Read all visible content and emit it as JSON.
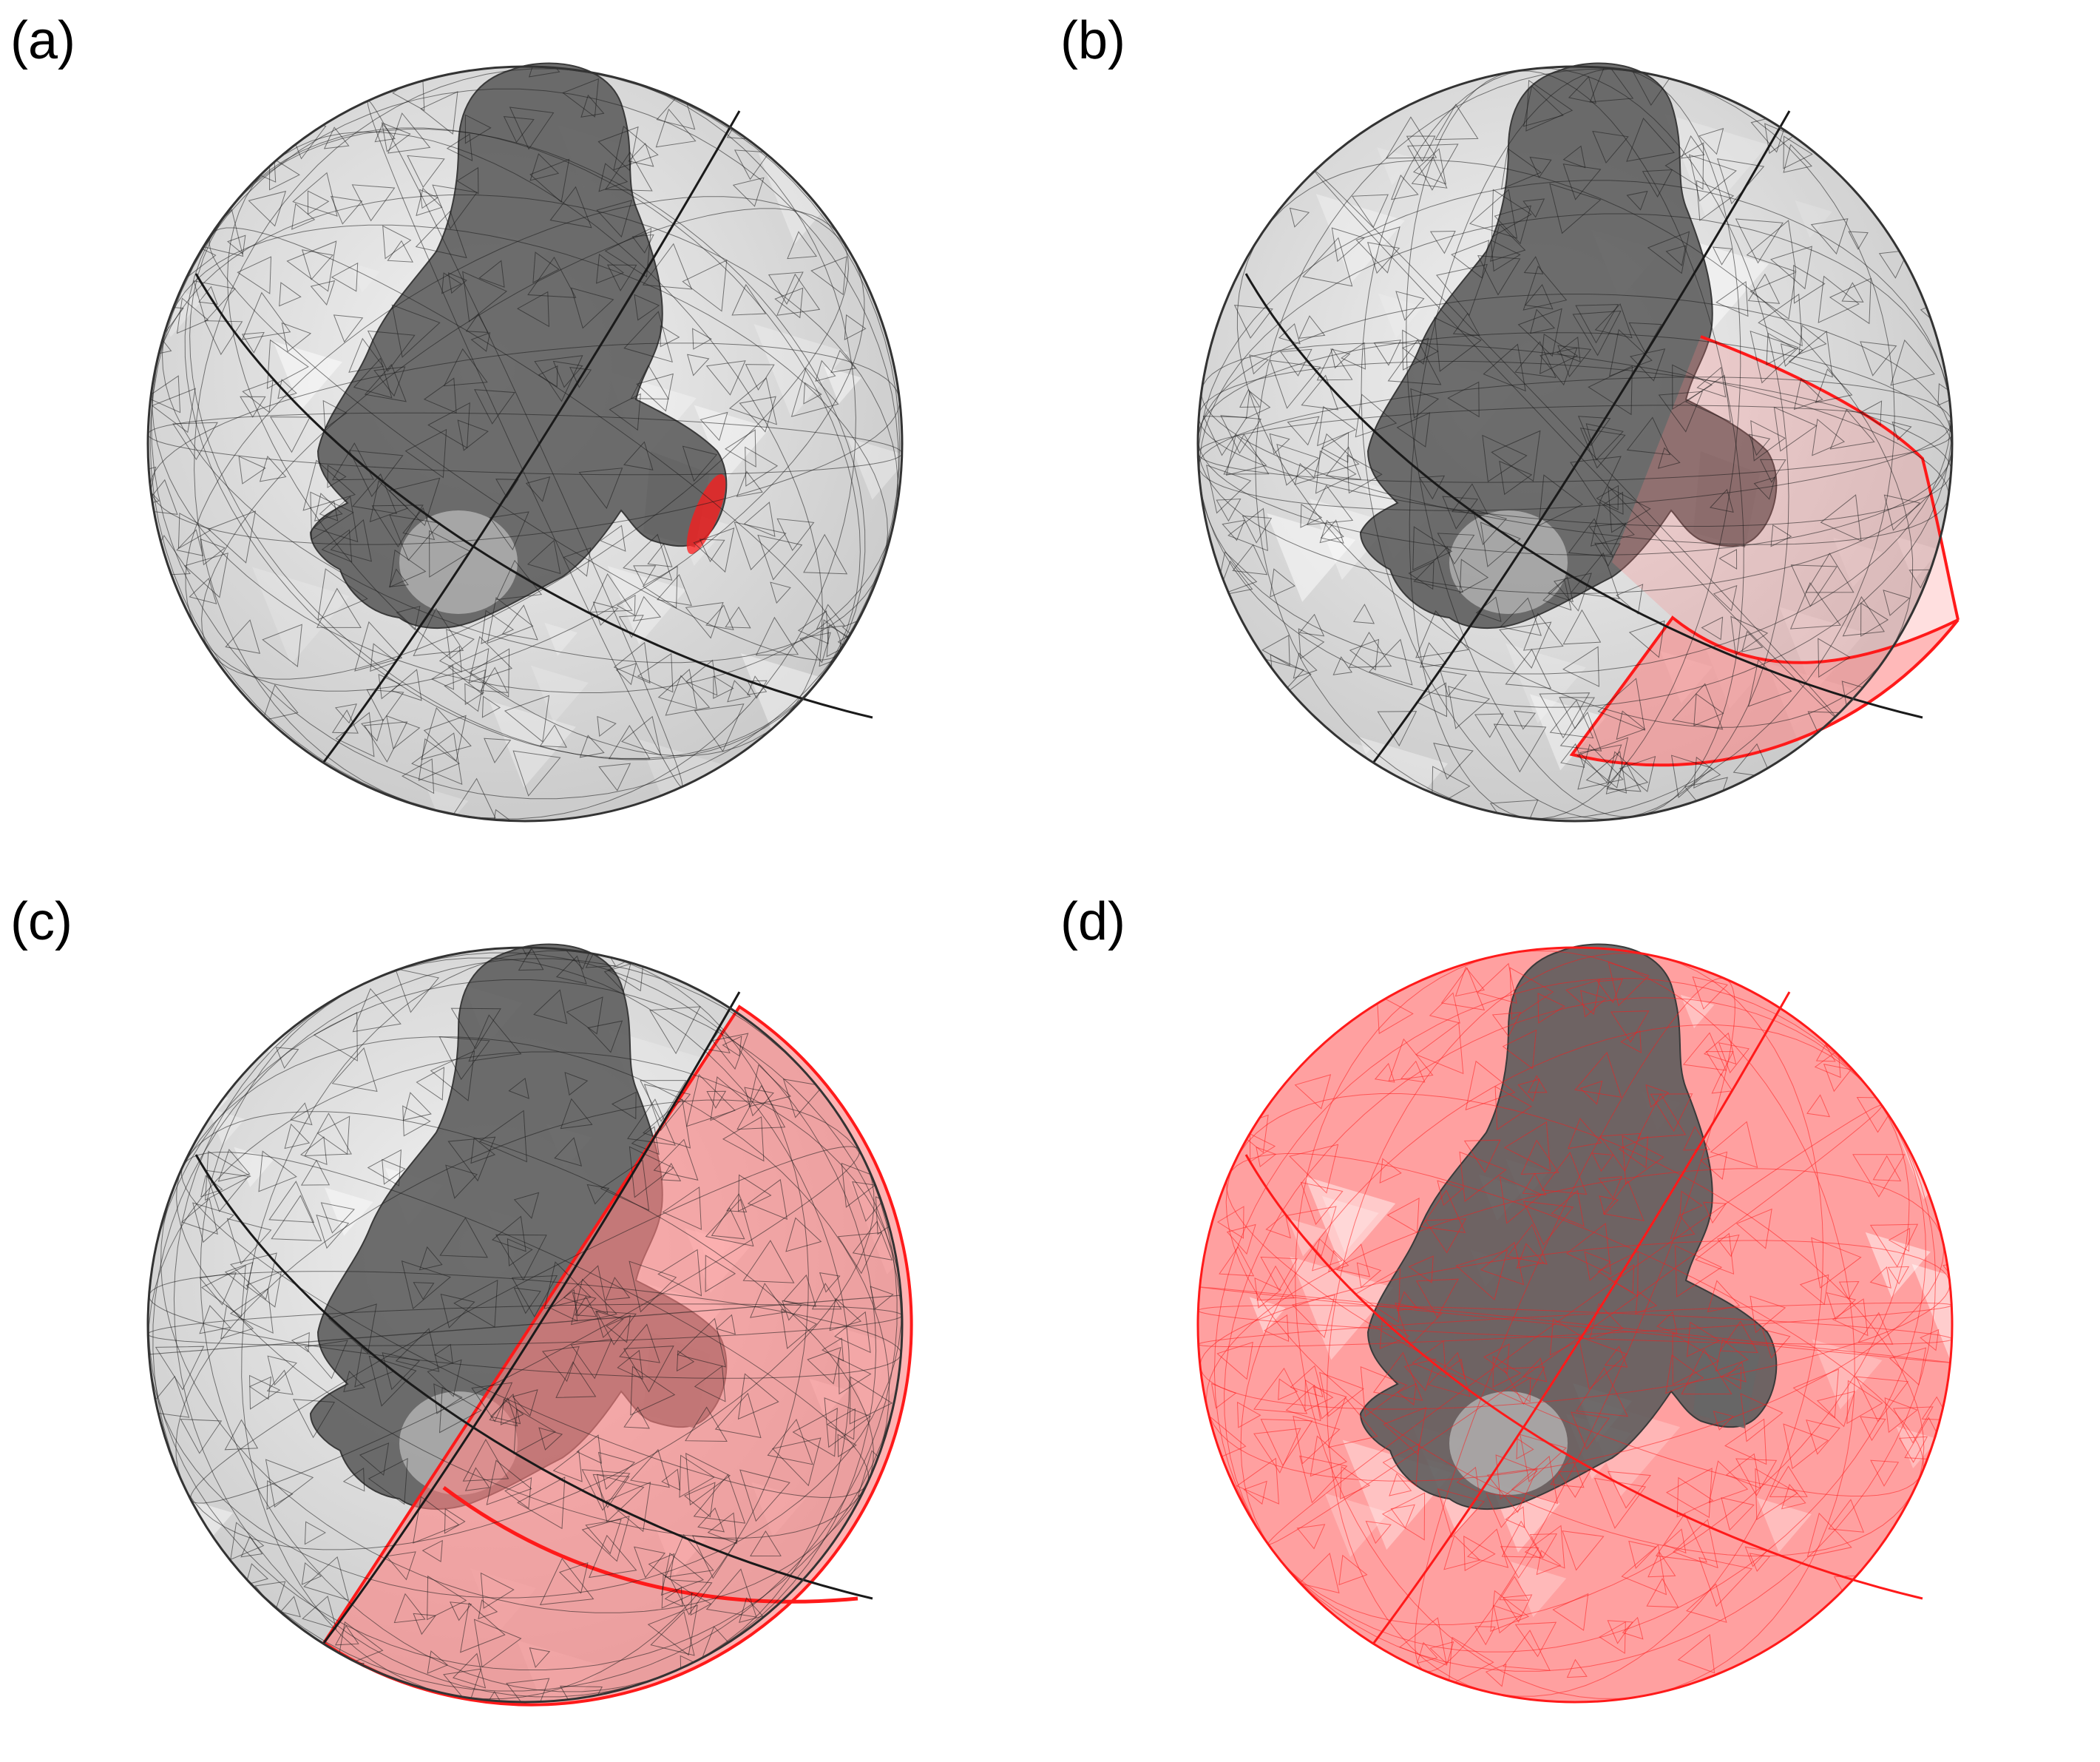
{
  "panels": [
    {
      "label": "(a)",
      "highlight": "outlet-cap"
    },
    {
      "label": "(b)",
      "highlight": "lower-sector"
    },
    {
      "label": "(c)",
      "highlight": "right-half"
    },
    {
      "label": "(d)",
      "highlight": "full-sphere"
    }
  ],
  "colors": {
    "mesh": "#1a1a1a",
    "sphere_fill": "#c8c8c8",
    "object_fill": "#5a5a5a",
    "highlight": "#ff1a1a",
    "highlight_fill": "#ff8080"
  }
}
